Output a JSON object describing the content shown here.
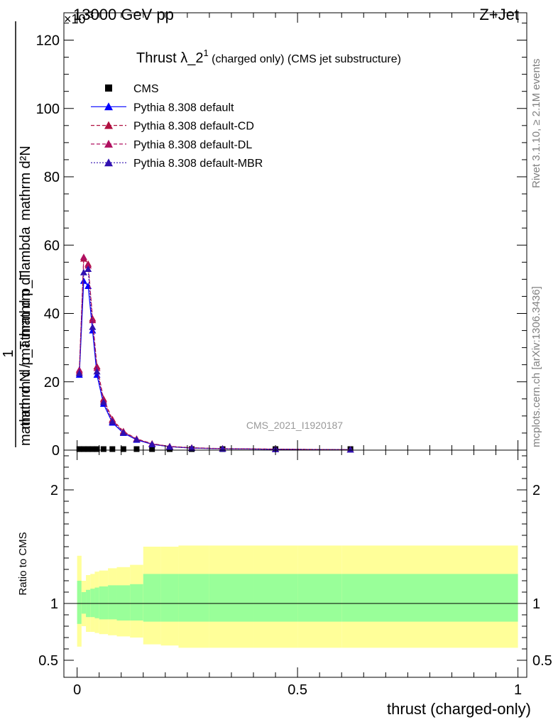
{
  "header": {
    "left": "13000 GeV pp",
    "right": "Z+Jet",
    "exponent": "×10",
    "exponent_power": "-3"
  },
  "side_labels": {
    "rivet": "Rivet 3.1.10, ≥ 2.1M events",
    "mcplots": "mcplots.cern.ch [arXiv:1306.3436]"
  },
  "watermark": "CMS_2021_I1920187",
  "ratio_ylabel": "Ratio to CMS",
  "xlabel": "thrust (charged-only)",
  "ylabel_top": "mathrm d²N",
  "ylabel_top_sub": "mathrm d p_T mathrm d lambda",
  "ylabel_num": "1",
  "ylabel_den": "mathrm d N / mathrm d p_T",
  "chart_data": {
    "type": "line",
    "title_main": "Thrust λ_2",
    "title_sup": "1",
    "title_rest": " (charged only) (CMS jet substructure)",
    "x": [
      0.005,
      0.015,
      0.025,
      0.035,
      0.045,
      0.06,
      0.08,
      0.105,
      0.135,
      0.17,
      0.21,
      0.26,
      0.33,
      0.45,
      0.62
    ],
    "series": [
      {
        "name": "CMS",
        "color": "#000000",
        "values": [
          0.3,
          0.3,
          0.3,
          0.3,
          0.3,
          0.3,
          0.3,
          0.3,
          0.3,
          0.3,
          0.3,
          0.3,
          0.3,
          0.3,
          0.3
        ]
      },
      {
        "name": "Pythia 8.308 default",
        "color": "#0000ff",
        "values": [
          22,
          49.5,
          48,
          35,
          22,
          13.5,
          8,
          5,
          3,
          1.7,
          1.0,
          0.6,
          0.4,
          0.25,
          0.1
        ]
      },
      {
        "name": "Pythia 8.308 default-CD",
        "color": "#b01040",
        "values": [
          23,
          56,
          54.5,
          38.5,
          24.5,
          15,
          9,
          5.5,
          3.3,
          1.9,
          1.1,
          0.7,
          0.45,
          0.3,
          0.12
        ]
      },
      {
        "name": "Pythia 8.308 default-DL",
        "color": "#b01060",
        "values": [
          23.5,
          56.5,
          54,
          38,
          24,
          14.5,
          8.7,
          5.3,
          3.2,
          1.8,
          1.05,
          0.65,
          0.42,
          0.28,
          0.11
        ]
      },
      {
        "name": "Pythia 8.308 default-MBR",
        "color": "#3010b0",
        "values": [
          22.5,
          52,
          53,
          36,
          23,
          14,
          8.3,
          5.1,
          3.1,
          1.75,
          1.0,
          0.62,
          0.4,
          0.26,
          0.1
        ]
      }
    ],
    "xlim": [
      -0.03,
      1.02
    ],
    "ylim": [
      0,
      128
    ],
    "yticks": [
      0,
      20,
      40,
      60,
      80,
      100,
      120
    ],
    "xticks": [
      0,
      0.5,
      1
    ],
    "xtick_labels": [
      "0",
      "0.5",
      "1"
    ],
    "ratio": {
      "ylim": [
        0.35,
        2.35
      ],
      "yticks": [
        0.5,
        1,
        2
      ],
      "ytick_labels": [
        "0.5",
        "1",
        "2"
      ],
      "edges": [
        0,
        0.01,
        0.02,
        0.03,
        0.04,
        0.05,
        0.07,
        0.09,
        0.12,
        0.15,
        0.19,
        0.23,
        0.3,
        0.4,
        0.5,
        0.6,
        1.0
      ],
      "inner_lo": [
        0.82,
        0.91,
        0.88,
        0.88,
        0.87,
        0.86,
        0.86,
        0.85,
        0.85,
        0.84,
        0.84,
        0.84,
        0.84,
        0.84,
        0.84,
        0.84
      ],
      "inner_hi": [
        1.2,
        1.1,
        1.12,
        1.13,
        1.14,
        1.15,
        1.16,
        1.16,
        1.17,
        1.26,
        1.26,
        1.26,
        1.26,
        1.26,
        1.26,
        1.26
      ],
      "outer_lo": [
        0.62,
        0.8,
        0.75,
        0.75,
        0.74,
        0.73,
        0.72,
        0.71,
        0.7,
        0.64,
        0.63,
        0.61,
        0.61,
        0.61,
        0.61,
        0.61
      ],
      "outer_hi": [
        1.42,
        1.2,
        1.25,
        1.26,
        1.28,
        1.29,
        1.31,
        1.32,
        1.34,
        1.5,
        1.5,
        1.51,
        1.51,
        1.51,
        1.51,
        1.51
      ],
      "inner_color": "#99ff99",
      "outer_color": "#ffff99"
    }
  }
}
